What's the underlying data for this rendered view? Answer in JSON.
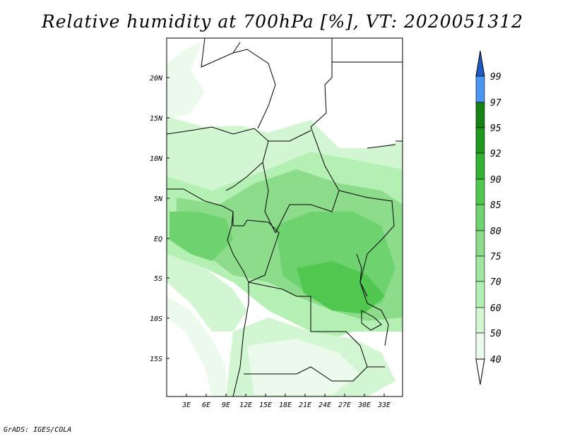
{
  "title": "Relative humidity at 700hPa [%], VT: 2020051312",
  "credit": "GrADS: IGES/COLA",
  "map": {
    "lat_labels": [
      "20N",
      "15N",
      "10N",
      "5N",
      "EQ",
      "5S",
      "10S",
      "15S"
    ],
    "lon_labels": [
      "3E",
      "6E",
      "9E",
      "12E",
      "15E",
      "18E",
      "21E",
      "24E",
      "27E",
      "30E",
      "33E"
    ]
  },
  "colorbar": {
    "levels": [
      "40",
      "50",
      "60",
      "70",
      "75",
      "80",
      "85",
      "90",
      "92",
      "95",
      "97",
      "99"
    ],
    "colors": [
      "#ebfaeb",
      "#d2f5d2",
      "#b4f0b4",
      "#a0e6a0",
      "#8cdc8c",
      "#6ed26e",
      "#50c850",
      "#32b432",
      "#1e9b1e",
      "#148214",
      "#4b96f0",
      "#2d78dc",
      "#1e5ac8"
    ]
  }
}
